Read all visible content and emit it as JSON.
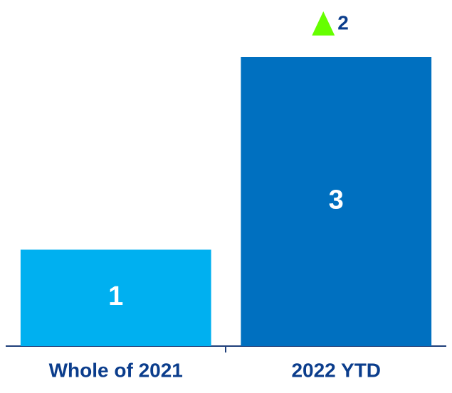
{
  "chart_data": {
    "type": "bar",
    "categories": [
      "Whole of 2021",
      "2022 YTD"
    ],
    "values": [
      1,
      3
    ],
    "colors": [
      "#00b0f0",
      "#0070c0"
    ],
    "annotation": {
      "text": "2",
      "color": "#66ff00"
    }
  }
}
